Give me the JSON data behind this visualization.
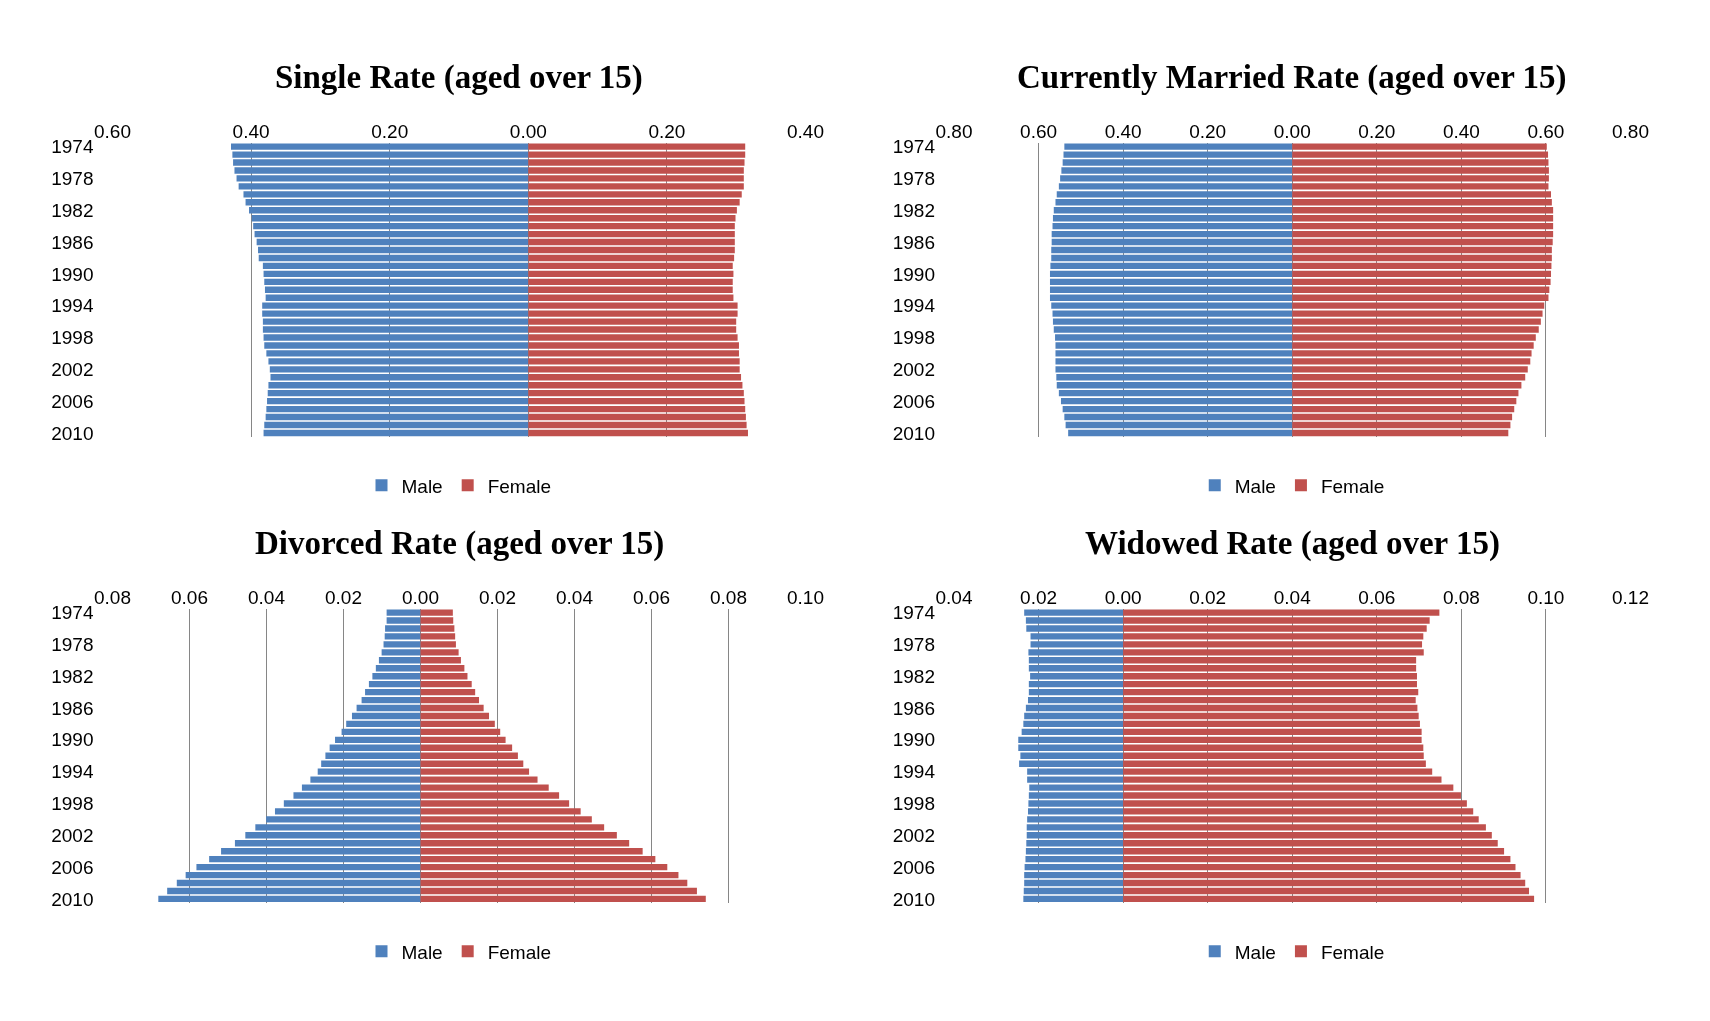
{
  "chart_data": [
    {
      "type": "bar",
      "orientation": "horizontal",
      "stacked": true,
      "title": "Single Rate (aged over 15)",
      "categories": [
        "1974",
        null,
        null,
        null,
        "1978",
        null,
        null,
        null,
        "1982",
        null,
        null,
        null,
        "1986",
        null,
        null,
        null,
        "1990",
        null,
        null,
        null,
        "1994",
        null,
        null,
        null,
        "1998",
        null,
        null,
        null,
        "2002",
        null,
        null,
        null,
        "2006",
        null,
        null,
        null,
        "2010"
      ],
      "series": [
        {
          "name": "Male",
          "color": "#4f81bd",
          "values": [
            -0.429,
            -0.427,
            -0.426,
            -0.424,
            -0.421,
            -0.418,
            -0.411,
            -0.408,
            -0.403,
            -0.399,
            -0.397,
            -0.395,
            -0.392,
            -0.39,
            -0.389,
            -0.383,
            -0.382,
            -0.381,
            -0.38,
            -0.379,
            -0.384,
            -0.384,
            -0.383,
            -0.383,
            -0.382,
            -0.381,
            -0.378,
            -0.375,
            -0.373,
            -0.372,
            -0.375,
            -0.376,
            -0.377,
            -0.378,
            -0.379,
            -0.381,
            -0.382
          ]
        },
        {
          "name": "Female",
          "color": "#c0504d",
          "values": [
            0.313,
            0.313,
            0.312,
            0.311,
            0.311,
            0.311,
            0.308,
            0.305,
            0.301,
            0.299,
            0.298,
            0.298,
            0.298,
            0.298,
            0.297,
            0.295,
            0.296,
            0.295,
            0.295,
            0.296,
            0.302,
            0.302,
            0.3,
            0.3,
            0.302,
            0.304,
            0.304,
            0.305,
            0.305,
            0.307,
            0.309,
            0.311,
            0.312,
            0.313,
            0.314,
            0.315,
            0.317
          ]
        }
      ],
      "xlim": [
        -0.6,
        0.4
      ],
      "xticks": [
        {
          "value": -0.6,
          "label": "0.60"
        },
        {
          "value": -0.4,
          "label": "0.40"
        },
        {
          "value": -0.2,
          "label": "0.20"
        },
        {
          "value": 0,
          "label": "0.00"
        },
        {
          "value": 0.2,
          "label": "0.20"
        },
        {
          "value": 0.4,
          "label": "0.40"
        }
      ],
      "grid": "x",
      "legend": "bottom"
    },
    {
      "type": "bar",
      "orientation": "horizontal",
      "stacked": true,
      "title": "Currently Married Rate (aged over 15)",
      "categories": [
        "1974",
        null,
        null,
        null,
        "1978",
        null,
        null,
        null,
        "1982",
        null,
        null,
        null,
        "1986",
        null,
        null,
        null,
        "1990",
        null,
        null,
        null,
        "1994",
        null,
        null,
        null,
        "1998",
        null,
        null,
        null,
        "2002",
        null,
        null,
        null,
        "2006",
        null,
        null,
        null,
        "2010"
      ],
      "series": [
        {
          "name": "Male",
          "color": "#4f81bd",
          "values": [
            -0.539,
            -0.541,
            -0.543,
            -0.546,
            -0.549,
            -0.552,
            -0.557,
            -0.56,
            -0.564,
            -0.566,
            -0.567,
            -0.569,
            -0.569,
            -0.57,
            -0.57,
            -0.572,
            -0.573,
            -0.573,
            -0.573,
            -0.573,
            -0.57,
            -0.567,
            -0.566,
            -0.564,
            -0.561,
            -0.56,
            -0.56,
            -0.56,
            -0.56,
            -0.558,
            -0.557,
            -0.552,
            -0.547,
            -0.543,
            -0.539,
            -0.536,
            -0.53
          ]
        },
        {
          "name": "Female",
          "color": "#c0504d",
          "values": [
            0.602,
            0.605,
            0.606,
            0.607,
            0.607,
            0.606,
            0.612,
            0.614,
            0.617,
            0.617,
            0.617,
            0.617,
            0.616,
            0.614,
            0.614,
            0.613,
            0.612,
            0.611,
            0.608,
            0.606,
            0.596,
            0.592,
            0.588,
            0.583,
            0.576,
            0.571,
            0.566,
            0.563,
            0.557,
            0.551,
            0.542,
            0.535,
            0.53,
            0.525,
            0.52,
            0.516,
            0.511
          ]
        }
      ],
      "xlim": [
        -0.8,
        0.8
      ],
      "xticks": [
        {
          "value": -0.8,
          "label": "0.80"
        },
        {
          "value": -0.6,
          "label": "0.60"
        },
        {
          "value": -0.4,
          "label": "0.40"
        },
        {
          "value": -0.2,
          "label": "0.20"
        },
        {
          "value": 0,
          "label": "0.00"
        },
        {
          "value": 0.2,
          "label": "0.20"
        },
        {
          "value": 0.4,
          "label": "0.40"
        },
        {
          "value": 0.6,
          "label": "0.60"
        },
        {
          "value": 0.8,
          "label": "0.80"
        }
      ],
      "grid": "x",
      "legend": "bottom"
    },
    {
      "type": "bar",
      "orientation": "horizontal",
      "stacked": true,
      "title": "Divorced Rate (aged over 15)",
      "categories": [
        "1974",
        null,
        null,
        null,
        "1978",
        null,
        null,
        null,
        "1982",
        null,
        null,
        null,
        "1986",
        null,
        null,
        null,
        "1990",
        null,
        null,
        null,
        "1994",
        null,
        null,
        null,
        "1998",
        null,
        null,
        null,
        "2002",
        null,
        null,
        null,
        "2006",
        null,
        null,
        null,
        "2010"
      ],
      "series": [
        {
          "name": "Male",
          "color": "#4f81bd",
          "values": [
            -0.0088,
            -0.0088,
            -0.0092,
            -0.0093,
            -0.0096,
            -0.0101,
            -0.0108,
            -0.0116,
            -0.0125,
            -0.0134,
            -0.0144,
            -0.0153,
            -0.0166,
            -0.0178,
            -0.0193,
            -0.0205,
            -0.0222,
            -0.0236,
            -0.0247,
            -0.0258,
            -0.0267,
            -0.0286,
            -0.0308,
            -0.033,
            -0.0355,
            -0.0378,
            -0.0401,
            -0.0429,
            -0.0455,
            -0.0482,
            -0.0518,
            -0.0549,
            -0.0582,
            -0.061,
            -0.0633,
            -0.0658,
            -0.0681
          ]
        },
        {
          "name": "Female",
          "color": "#c0504d",
          "values": [
            0.0084,
            0.0085,
            0.0088,
            0.009,
            0.0092,
            0.0099,
            0.0105,
            0.0114,
            0.0122,
            0.0133,
            0.0142,
            0.0152,
            0.0164,
            0.0178,
            0.0193,
            0.0207,
            0.0221,
            0.0238,
            0.0253,
            0.0267,
            0.0282,
            0.0304,
            0.0333,
            0.036,
            0.0386,
            0.0416,
            0.0445,
            0.0477,
            0.051,
            0.0542,
            0.0577,
            0.061,
            0.0641,
            0.067,
            0.0693,
            0.0718,
            0.0741
          ]
        }
      ],
      "xlim": [
        -0.08,
        0.1
      ],
      "xticks": [
        {
          "value": -0.08,
          "label": "0.08"
        },
        {
          "value": -0.06,
          "label": "0.06"
        },
        {
          "value": -0.04,
          "label": "0.04"
        },
        {
          "value": -0.02,
          "label": "0.02"
        },
        {
          "value": 0,
          "label": "0.00"
        },
        {
          "value": 0.02,
          "label": "0.02"
        },
        {
          "value": 0.04,
          "label": "0.04"
        },
        {
          "value": 0.06,
          "label": "0.06"
        },
        {
          "value": 0.08,
          "label": "0.08"
        },
        {
          "value": 0.1,
          "label": "0.10"
        }
      ],
      "grid": "x",
      "legend": "bottom"
    },
    {
      "type": "bar",
      "orientation": "horizontal",
      "stacked": true,
      "title": "Widowed Rate (aged over 15)",
      "categories": [
        "1974",
        null,
        null,
        null,
        "1978",
        null,
        null,
        null,
        "1982",
        null,
        null,
        null,
        "1986",
        null,
        null,
        null,
        "1990",
        null,
        null,
        null,
        "1994",
        null,
        null,
        null,
        "1998",
        null,
        null,
        null,
        "2002",
        null,
        null,
        null,
        "2006",
        null,
        null,
        null,
        "2010"
      ],
      "series": [
        {
          "name": "Male",
          "color": "#4f81bd",
          "values": [
            -0.0234,
            -0.023,
            -0.0229,
            -0.0219,
            -0.0219,
            -0.0224,
            -0.0223,
            -0.0223,
            -0.022,
            -0.0223,
            -0.0223,
            -0.0225,
            -0.023,
            -0.0234,
            -0.0236,
            -0.024,
            -0.0248,
            -0.0248,
            -0.0243,
            -0.0246,
            -0.0227,
            -0.0227,
            -0.0222,
            -0.0223,
            -0.0224,
            -0.0225,
            -0.0227,
            -0.0228,
            -0.0228,
            -0.0229,
            -0.023,
            -0.0231,
            -0.0233,
            -0.0234,
            -0.0234,
            -0.0235,
            -0.0236
          ]
        },
        {
          "name": "Female",
          "color": "#c0504d",
          "values": [
            0.0748,
            0.0725,
            0.0718,
            0.071,
            0.0707,
            0.0711,
            0.0693,
            0.0693,
            0.0695,
            0.0695,
            0.0698,
            0.0692,
            0.0696,
            0.0699,
            0.0702,
            0.0706,
            0.0706,
            0.071,
            0.0711,
            0.0716,
            0.0731,
            0.0753,
            0.0781,
            0.0799,
            0.0813,
            0.0828,
            0.0841,
            0.0858,
            0.0872,
            0.0886,
            0.0901,
            0.0916,
            0.0928,
            0.094,
            0.0951,
            0.096,
            0.0972
          ]
        }
      ],
      "xlim": [
        -0.04,
        0.12
      ],
      "xticks": [
        {
          "value": -0.04,
          "label": "0.04"
        },
        {
          "value": -0.02,
          "label": "0.02"
        },
        {
          "value": 0,
          "label": "0.00"
        },
        {
          "value": 0.02,
          "label": "0.02"
        },
        {
          "value": 0.04,
          "label": "0.04"
        },
        {
          "value": 0.06,
          "label": "0.06"
        },
        {
          "value": 0.08,
          "label": "0.08"
        },
        {
          "value": 0.1,
          "label": "0.10"
        },
        {
          "value": 0.12,
          "label": "0.12"
        }
      ],
      "grid": "x",
      "legend": "bottom"
    }
  ]
}
